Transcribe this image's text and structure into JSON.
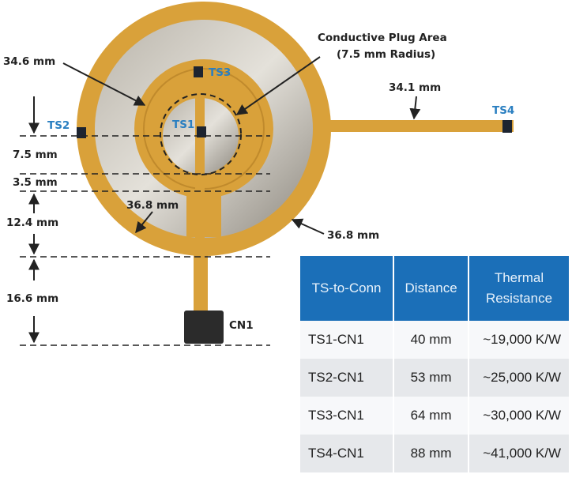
{
  "labels": {
    "plug_title": "Conductive Plug Area",
    "plug_sub": "(7.5 mm Radius)",
    "dim_346": "34.6 mm",
    "dim_341": "34.1 mm",
    "dim_75": "7.5 mm",
    "dim_35": "3.5 mm",
    "dim_124": "12.4 mm",
    "dim_166": "16.6 mm",
    "dim_368_inner": "36.8 mm",
    "dim_368_outer": "36.8 mm",
    "ts1": "TS1",
    "ts2": "TS2",
    "ts3": "TS3",
    "ts4": "TS4",
    "cn1": "CN1"
  },
  "table": {
    "headers": [
      "TS-to-Conn",
      "Distance",
      "Thermal Resistance"
    ],
    "rows": [
      [
        "TS1-CN1",
        "40 mm",
        "~19,000 K/W"
      ],
      [
        "TS2-CN1",
        "53 mm",
        "~25,000 K/W"
      ],
      [
        "TS3-CN1",
        "64 mm",
        "~30,000 K/W"
      ],
      [
        "TS4-CN1",
        "88 mm",
        "~41,000 K/W"
      ]
    ]
  },
  "colors": {
    "header": "#1b6fb8",
    "label_blue": "#2a7fc1",
    "flex": "#d9a13a",
    "foil": "#cfcac0"
  }
}
